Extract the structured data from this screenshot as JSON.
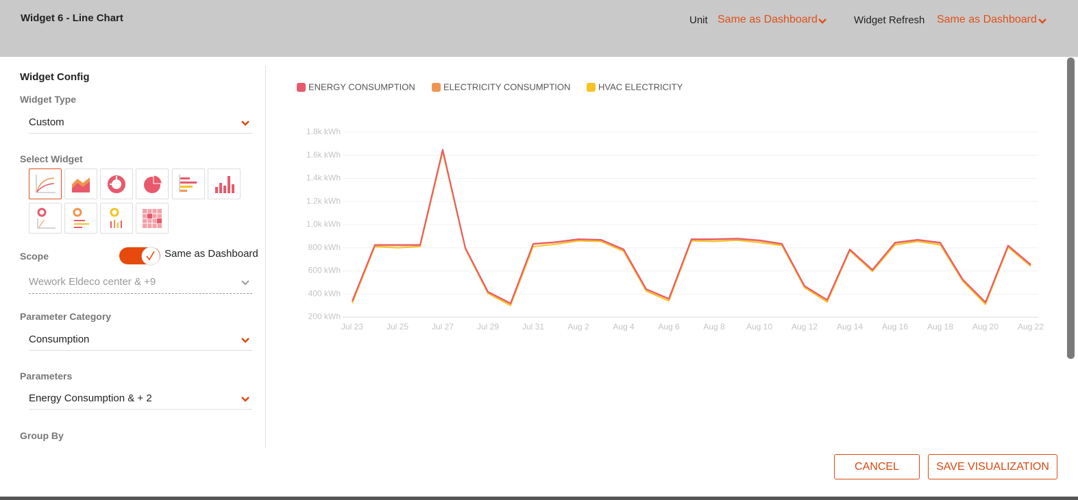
{
  "header": {
    "title": "Widget 6 - Line Chart",
    "unit_label": "Unit",
    "unit_value": "Same as Dashboard",
    "refresh_label": "Widget Refresh",
    "refresh_value": "Same as Dashboard"
  },
  "config": {
    "title": "Widget Config",
    "widget_type_label": "Widget Type",
    "widget_type": "Custom",
    "select_widget_label": "Select Widget",
    "scope_label": "Scope",
    "scope_toggle": "Same as Dashboard",
    "scope_value": "Wework Eldeco center & +9",
    "parameter_category_label": "Parameter Category",
    "parameter_category": "Consumption",
    "parameters_label": "Parameters",
    "parameters": "Energy Consumption & + 2",
    "group_by_label": "Group By"
  },
  "buttons": {
    "cancel": "CANCEL",
    "save": "SAVE VISUALIZATION"
  },
  "chart_data": {
    "type": "line",
    "categories": [
      "Jul 23",
      null,
      "Jul 25",
      null,
      "Jul 27",
      null,
      "Jul 29",
      null,
      "Jul 31",
      null,
      "Aug 2",
      null,
      "Aug 4",
      null,
      "Aug 6",
      null,
      "Aug 8",
      null,
      "Aug 10",
      null,
      "Aug 12",
      null,
      "Aug 14",
      null,
      "Aug 16",
      null,
      "Aug 18",
      null,
      "Aug 20",
      null,
      "Aug 22"
    ],
    "series": [
      {
        "name": "ENERGY CONSUMPTION",
        "color": "#e8596b",
        "values": [
          340,
          825,
          825,
          825,
          1650,
          800,
          420,
          320,
          835,
          850,
          875,
          870,
          787,
          443,
          360,
          875,
          875,
          880,
          865,
          835,
          470,
          350,
          787,
          610,
          845,
          870,
          845,
          525,
          330,
          820,
          655
        ]
      },
      {
        "name": "ELECTRICITY CONSUMPTION",
        "color": "#f0954f",
        "values": [
          335,
          820,
          820,
          820,
          1645,
          795,
          415,
          315,
          830,
          845,
          870,
          865,
          782,
          438,
          355,
          870,
          870,
          875,
          860,
          830,
          465,
          345,
          782,
          605,
          840,
          865,
          840,
          520,
          325,
          815,
          650
        ]
      },
      {
        "name": "HVAC ELECTRICITY",
        "color": "#f5c324",
        "values": [
          320,
          810,
          800,
          810,
          1630,
          790,
          405,
          300,
          810,
          830,
          860,
          855,
          770,
          425,
          340,
          860,
          855,
          865,
          845,
          820,
          455,
          330,
          775,
          595,
          825,
          855,
          825,
          510,
          310,
          805,
          640
        ]
      }
    ],
    "ylim": [
      200,
      1800
    ],
    "yticks": [
      {
        "value": 200,
        "label": "200 kWh"
      },
      {
        "value": 400,
        "label": "400 kWh"
      },
      {
        "value": 600,
        "label": "600 kWh"
      },
      {
        "value": 800,
        "label": "800 kWh"
      },
      {
        "value": 1000,
        "label": "1.0k kWh"
      },
      {
        "value": 1200,
        "label": "1.2k kWh"
      },
      {
        "value": 1400,
        "label": "1.4k kWh"
      },
      {
        "value": 1600,
        "label": "1.6k kWh"
      },
      {
        "value": 1800,
        "label": "1.8k kWh"
      }
    ],
    "grid": true,
    "legend": "top"
  }
}
